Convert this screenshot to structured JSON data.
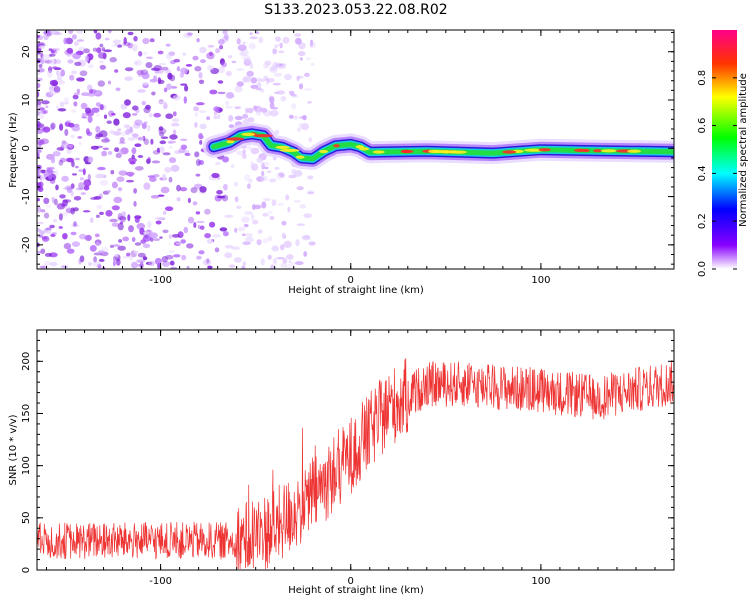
{
  "title": "S133.2023.053.22.08.R02",
  "chart_data": [
    {
      "type": "heatmap",
      "xlabel": "Height of straight line (km)",
      "ylabel": "Frequency (Hz)",
      "xlim": [
        -165,
        170
      ],
      "ylim": [
        -25,
        24.5
      ],
      "x_ticks": [
        -100,
        0,
        100
      ],
      "y_ticks": [
        -20,
        -10,
        0,
        10,
        20
      ],
      "noise_region_x": [
        -165,
        -40
      ],
      "ridge": [
        {
          "x": -72,
          "y": 0.3
        },
        {
          "x": -64,
          "y": 1.2
        },
        {
          "x": -58,
          "y": 2.6
        },
        {
          "x": -52,
          "y": 3.0
        },
        {
          "x": -46,
          "y": 2.6
        },
        {
          "x": -42,
          "y": 0.6
        },
        {
          "x": -36,
          "y": 0.2
        },
        {
          "x": -30,
          "y": -0.8
        },
        {
          "x": -26,
          "y": -2.0
        },
        {
          "x": -20,
          "y": -2.2
        },
        {
          "x": -14,
          "y": -0.6
        },
        {
          "x": -8,
          "y": 0.5
        },
        {
          "x": 0,
          "y": 0.8
        },
        {
          "x": 5,
          "y": 0.3
        },
        {
          "x": 10,
          "y": -0.8
        },
        {
          "x": 40,
          "y": -0.6
        },
        {
          "x": 75,
          "y": -1.0
        },
        {
          "x": 100,
          "y": -0.3
        },
        {
          "x": 130,
          "y": -0.5
        },
        {
          "x": 170,
          "y": -0.7
        }
      ],
      "colorbar": {
        "label": "Normalized spectral amplitude",
        "range": [
          0,
          1
        ],
        "ticks": [
          "0.0",
          "0.2",
          "0.4",
          "0.6",
          "0.8"
        ]
      }
    },
    {
      "type": "line",
      "xlabel": "Height of straight line (km)",
      "ylabel": "SNR (10 * v/v)",
      "xlim": [
        -165,
        170
      ],
      "ylim": [
        0,
        230
      ],
      "x_ticks": [
        -100,
        0,
        100
      ],
      "y_ticks": [
        0,
        50,
        100,
        150,
        200
      ],
      "color": "#ee3333",
      "trend": [
        {
          "x": -165,
          "y": 28
        },
        {
          "x": -60,
          "y": 28
        },
        {
          "x": -40,
          "y": 40
        },
        {
          "x": -20,
          "y": 70
        },
        {
          "x": 0,
          "y": 110
        },
        {
          "x": 20,
          "y": 155
        },
        {
          "x": 40,
          "y": 178
        },
        {
          "x": 60,
          "y": 178
        },
        {
          "x": 100,
          "y": 172
        },
        {
          "x": 130,
          "y": 165
        },
        {
          "x": 170,
          "y": 180
        }
      ]
    }
  ]
}
